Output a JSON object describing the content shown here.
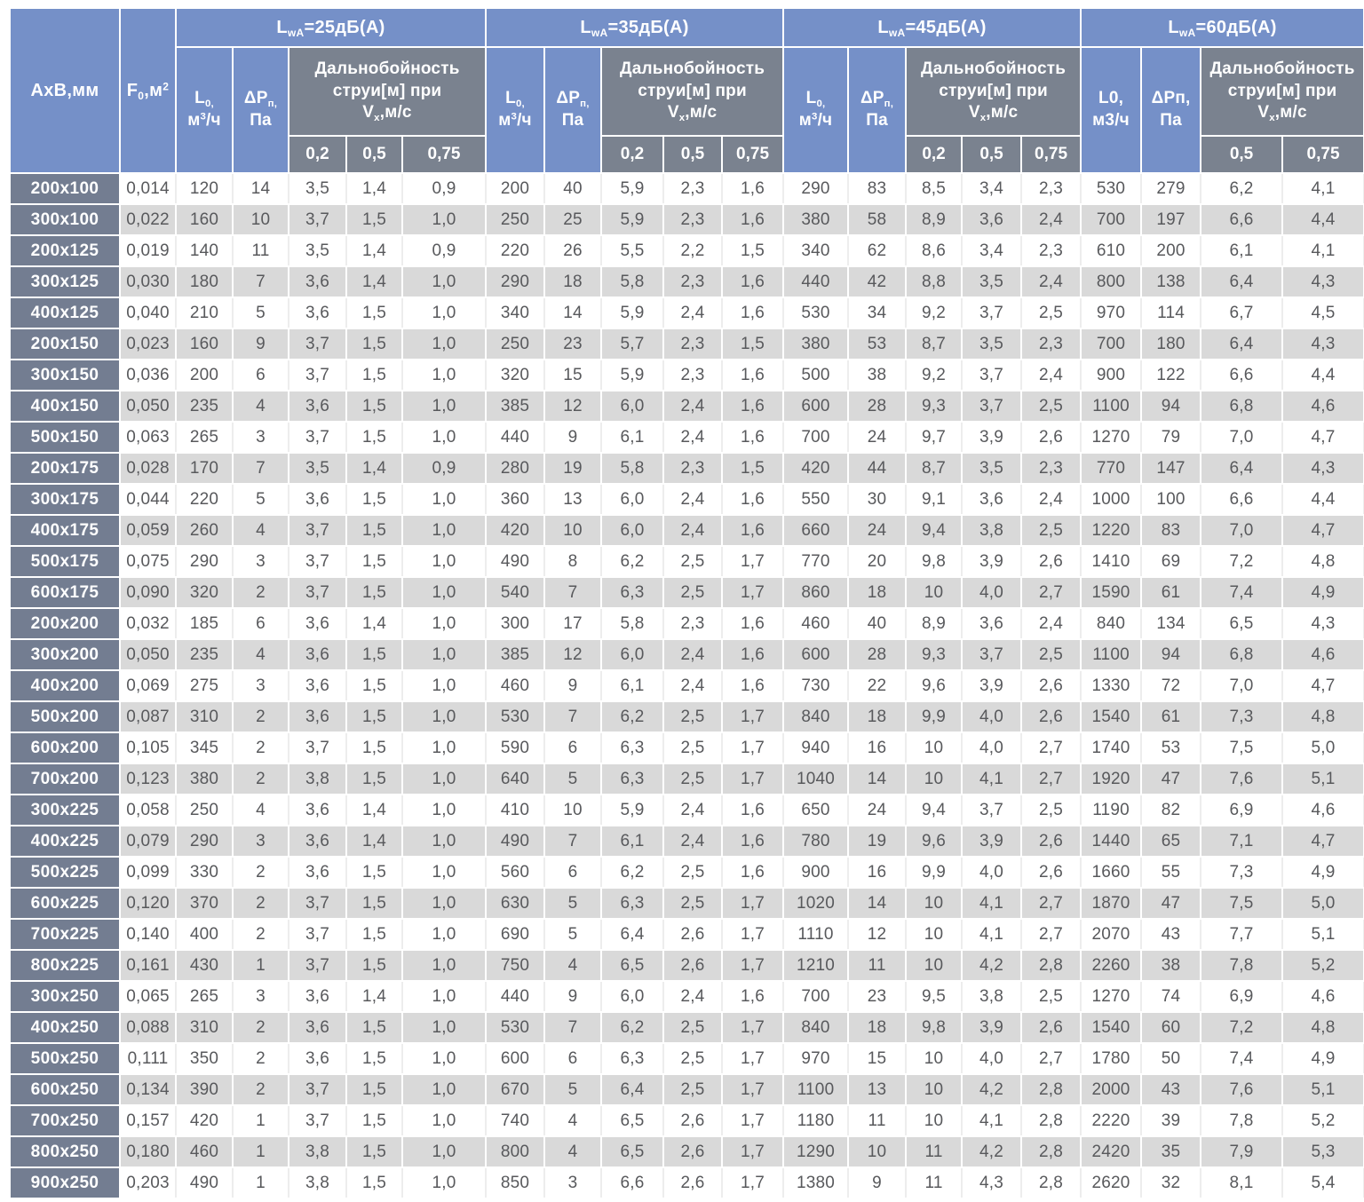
{
  "colors": {
    "header_blue": "#7590c8",
    "header_grey": "#7a828f",
    "row_header": "#737d91",
    "stripe_grey": "#d9d9d9",
    "text_dark": "#58595c",
    "border_light": "#ededed"
  },
  "header": {
    "axb": "АхВ,мм",
    "f_pre": "F",
    "f_sub": "0",
    "f_mid": ",м",
    "f_sup": "2",
    "l0_pre": "L",
    "l0_sub": "0,",
    "l0_unit_pre": "м",
    "l0_unit_sup": "3",
    "l0_unit_post": "/ч",
    "dp_pre": "ΔР",
    "dp_sub": "п,",
    "dp_unit": "Па",
    "jet_line1": "Дальнобойность",
    "jet_line2": "струи[м] при",
    "jet_v": "V",
    "jet_v_sub": "x",
    "jet_v_post": ",м/с",
    "groups": [
      {
        "band_pre": "L",
        "band_sub": "wA",
        "band_post": "=25дБ(А)",
        "speeds": [
          "0,2",
          "0,5",
          "0,75"
        ]
      },
      {
        "band_pre": "L",
        "band_sub": "wA",
        "band_post": "=35дБ(А)",
        "speeds": [
          "0,2",
          "0,5",
          "0,75"
        ]
      },
      {
        "band_pre": "L",
        "band_sub": "wA",
        "band_post": "=45дБ(А)",
        "speeds": [
          "0,2",
          "0,5",
          "0,75"
        ]
      },
      {
        "band_pre": "L",
        "band_sub": "wA",
        "band_post": "=60дБ(А)",
        "speeds": [
          "0,5",
          "0,75"
        ],
        "l0_line1": "L0,",
        "l0_line2": "м3/ч",
        "dp_line1": "ΔРп,",
        "dp_line2": "Па"
      }
    ]
  },
  "rows": [
    [
      "200x100",
      "0,014",
      "120",
      "14",
      "3,5",
      "1,4",
      "0,9",
      "200",
      "40",
      "5,9",
      "2,3",
      "1,6",
      "290",
      "83",
      "8,5",
      "3,4",
      "2,3",
      "530",
      "279",
      "6,2",
      "4,1"
    ],
    [
      "300x100",
      "0,022",
      "160",
      "10",
      "3,7",
      "1,5",
      "1,0",
      "250",
      "25",
      "5,9",
      "2,3",
      "1,6",
      "380",
      "58",
      "8,9",
      "3,6",
      "2,4",
      "700",
      "197",
      "6,6",
      "4,4"
    ],
    [
      "200x125",
      "0,019",
      "140",
      "11",
      "3,5",
      "1,4",
      "0,9",
      "220",
      "26",
      "5,5",
      "2,2",
      "1,5",
      "340",
      "62",
      "8,6",
      "3,4",
      "2,3",
      "610",
      "200",
      "6,1",
      "4,1"
    ],
    [
      "300x125",
      "0,030",
      "180",
      "7",
      "3,6",
      "1,4",
      "1,0",
      "290",
      "18",
      "5,8",
      "2,3",
      "1,6",
      "440",
      "42",
      "8,8",
      "3,5",
      "2,4",
      "800",
      "138",
      "6,4",
      "4,3"
    ],
    [
      "400x125",
      "0,040",
      "210",
      "5",
      "3,6",
      "1,5",
      "1,0",
      "340",
      "14",
      "5,9",
      "2,4",
      "1,6",
      "530",
      "34",
      "9,2",
      "3,7",
      "2,5",
      "970",
      "114",
      "6,7",
      "4,5"
    ],
    [
      "200x150",
      "0,023",
      "160",
      "9",
      "3,7",
      "1,5",
      "1,0",
      "250",
      "23",
      "5,7",
      "2,3",
      "1,5",
      "380",
      "53",
      "8,7",
      "3,5",
      "2,3",
      "700",
      "180",
      "6,4",
      "4,3"
    ],
    [
      "300x150",
      "0,036",
      "200",
      "6",
      "3,7",
      "1,5",
      "1,0",
      "320",
      "15",
      "5,9",
      "2,3",
      "1,6",
      "500",
      "38",
      "9,2",
      "3,7",
      "2,4",
      "900",
      "122",
      "6,6",
      "4,4"
    ],
    [
      "400x150",
      "0,050",
      "235",
      "4",
      "3,6",
      "1,5",
      "1,0",
      "385",
      "12",
      "6,0",
      "2,4",
      "1,6",
      "600",
      "28",
      "9,3",
      "3,7",
      "2,5",
      "1100",
      "94",
      "6,8",
      "4,6"
    ],
    [
      "500x150",
      "0,063",
      "265",
      "3",
      "3,7",
      "1,5",
      "1,0",
      "440",
      "9",
      "6,1",
      "2,4",
      "1,6",
      "700",
      "24",
      "9,7",
      "3,9",
      "2,6",
      "1270",
      "79",
      "7,0",
      "4,7"
    ],
    [
      "200x175",
      "0,028",
      "170",
      "7",
      "3,5",
      "1,4",
      "0,9",
      "280",
      "19",
      "5,8",
      "2,3",
      "1,5",
      "420",
      "44",
      "8,7",
      "3,5",
      "2,3",
      "770",
      "147",
      "6,4",
      "4,3"
    ],
    [
      "300x175",
      "0,044",
      "220",
      "5",
      "3,6",
      "1,5",
      "1,0",
      "360",
      "13",
      "6,0",
      "2,4",
      "1,6",
      "550",
      "30",
      "9,1",
      "3,6",
      "2,4",
      "1000",
      "100",
      "6,6",
      "4,4"
    ],
    [
      "400x175",
      "0,059",
      "260",
      "4",
      "3,7",
      "1,5",
      "1,0",
      "420",
      "10",
      "6,0",
      "2,4",
      "1,6",
      "660",
      "24",
      "9,4",
      "3,8",
      "2,5",
      "1220",
      "83",
      "7,0",
      "4,7"
    ],
    [
      "500x175",
      "0,075",
      "290",
      "3",
      "3,7",
      "1,5",
      "1,0",
      "490",
      "8",
      "6,2",
      "2,5",
      "1,7",
      "770",
      "20",
      "9,8",
      "3,9",
      "2,6",
      "1410",
      "69",
      "7,2",
      "4,8"
    ],
    [
      "600x175",
      "0,090",
      "320",
      "2",
      "3,7",
      "1,5",
      "1,0",
      "540",
      "7",
      "6,3",
      "2,5",
      "1,7",
      "860",
      "18",
      "10",
      "4,0",
      "2,7",
      "1590",
      "61",
      "7,4",
      "4,9"
    ],
    [
      "200x200",
      "0,032",
      "185",
      "6",
      "3,6",
      "1,4",
      "1,0",
      "300",
      "17",
      "5,8",
      "2,3",
      "1,6",
      "460",
      "40",
      "8,9",
      "3,6",
      "2,4",
      "840",
      "134",
      "6,5",
      "4,3"
    ],
    [
      "300x200",
      "0,050",
      "235",
      "4",
      "3,6",
      "1,5",
      "1,0",
      "385",
      "12",
      "6,0",
      "2,4",
      "1,6",
      "600",
      "28",
      "9,3",
      "3,7",
      "2,5",
      "1100",
      "94",
      "6,8",
      "4,6"
    ],
    [
      "400x200",
      "0,069",
      "275",
      "3",
      "3,6",
      "1,5",
      "1,0",
      "460",
      "9",
      "6,1",
      "2,4",
      "1,6",
      "730",
      "22",
      "9,6",
      "3,9",
      "2,6",
      "1330",
      "72",
      "7,0",
      "4,7"
    ],
    [
      "500x200",
      "0,087",
      "310",
      "2",
      "3,6",
      "1,5",
      "1,0",
      "530",
      "7",
      "6,2",
      "2,5",
      "1,7",
      "840",
      "18",
      "9,9",
      "4,0",
      "2,6",
      "1540",
      "61",
      "7,3",
      "4,8"
    ],
    [
      "600x200",
      "0,105",
      "345",
      "2",
      "3,7",
      "1,5",
      "1,0",
      "590",
      "6",
      "6,3",
      "2,5",
      "1,7",
      "940",
      "16",
      "10",
      "4,0",
      "2,7",
      "1740",
      "53",
      "7,5",
      "5,0"
    ],
    [
      "700x200",
      "0,123",
      "380",
      "2",
      "3,8",
      "1,5",
      "1,0",
      "640",
      "5",
      "6,3",
      "2,5",
      "1,7",
      "1040",
      "14",
      "10",
      "4,1",
      "2,7",
      "1920",
      "47",
      "7,6",
      "5,1"
    ],
    [
      "300x225",
      "0,058",
      "250",
      "4",
      "3,6",
      "1,4",
      "1,0",
      "410",
      "10",
      "5,9",
      "2,4",
      "1,6",
      "650",
      "24",
      "9,4",
      "3,7",
      "2,5",
      "1190",
      "82",
      "6,9",
      "4,6"
    ],
    [
      "400x225",
      "0,079",
      "290",
      "3",
      "3,6",
      "1,4",
      "1,0",
      "490",
      "7",
      "6,1",
      "2,4",
      "1,6",
      "780",
      "19",
      "9,6",
      "3,9",
      "2,6",
      "1440",
      "65",
      "7,1",
      "4,7"
    ],
    [
      "500x225",
      "0,099",
      "330",
      "2",
      "3,6",
      "1,5",
      "1,0",
      "560",
      "6",
      "6,2",
      "2,5",
      "1,6",
      "900",
      "16",
      "9,9",
      "4,0",
      "2,6",
      "1660",
      "55",
      "7,3",
      "4,9"
    ],
    [
      "600x225",
      "0,120",
      "370",
      "2",
      "3,7",
      "1,5",
      "1,0",
      "630",
      "5",
      "6,3",
      "2,5",
      "1,7",
      "1020",
      "14",
      "10",
      "4,1",
      "2,7",
      "1870",
      "47",
      "7,5",
      "5,0"
    ],
    [
      "700x225",
      "0,140",
      "400",
      "2",
      "3,7",
      "1,5",
      "1,0",
      "690",
      "5",
      "6,4",
      "2,6",
      "1,7",
      "1110",
      "12",
      "10",
      "4,1",
      "2,7",
      "2070",
      "43",
      "7,7",
      "5,1"
    ],
    [
      "800x225",
      "0,161",
      "430",
      "1",
      "3,7",
      "1,5",
      "1,0",
      "750",
      "4",
      "6,5",
      "2,6",
      "1,7",
      "1210",
      "11",
      "10",
      "4,2",
      "2,8",
      "2260",
      "38",
      "7,8",
      "5,2"
    ],
    [
      "300x250",
      "0,065",
      "265",
      "3",
      "3,6",
      "1,4",
      "1,0",
      "440",
      "9",
      "6,0",
      "2,4",
      "1,6",
      "700",
      "23",
      "9,5",
      "3,8",
      "2,5",
      "1270",
      "74",
      "6,9",
      "4,6"
    ],
    [
      "400x250",
      "0,088",
      "310",
      "2",
      "3,6",
      "1,5",
      "1,0",
      "530",
      "7",
      "6,2",
      "2,5",
      "1,7",
      "840",
      "18",
      "9,8",
      "3,9",
      "2,6",
      "1540",
      "60",
      "7,2",
      "4,8"
    ],
    [
      "500x250",
      "0,111",
      "350",
      "2",
      "3,6",
      "1,5",
      "1,0",
      "600",
      "6",
      "6,3",
      "2,5",
      "1,7",
      "970",
      "15",
      "10",
      "4,0",
      "2,7",
      "1780",
      "50",
      "7,4",
      "4,9"
    ],
    [
      "600x250",
      "0,134",
      "390",
      "2",
      "3,7",
      "1,5",
      "1,0",
      "670",
      "5",
      "6,4",
      "2,5",
      "1,7",
      "1100",
      "13",
      "10",
      "4,2",
      "2,8",
      "2000",
      "43",
      "7,6",
      "5,1"
    ],
    [
      "700x250",
      "0,157",
      "420",
      "1",
      "3,7",
      "1,5",
      "1,0",
      "740",
      "4",
      "6,5",
      "2,6",
      "1,7",
      "1180",
      "11",
      "10",
      "4,1",
      "2,8",
      "2220",
      "39",
      "7,8",
      "5,2"
    ],
    [
      "800x250",
      "0,180",
      "460",
      "1",
      "3,8",
      "1,5",
      "1,0",
      "800",
      "4",
      "6,5",
      "2,6",
      "1,7",
      "1290",
      "10",
      "11",
      "4,2",
      "2,8",
      "2420",
      "35",
      "7,9",
      "5,3"
    ],
    [
      "900x250",
      "0,203",
      "490",
      "1",
      "3,8",
      "1,5",
      "1,0",
      "850",
      "3",
      "6,6",
      "2,6",
      "1,7",
      "1380",
      "9",
      "11",
      "4,3",
      "2,8",
      "2620",
      "32",
      "8,1",
      "5,4"
    ]
  ]
}
